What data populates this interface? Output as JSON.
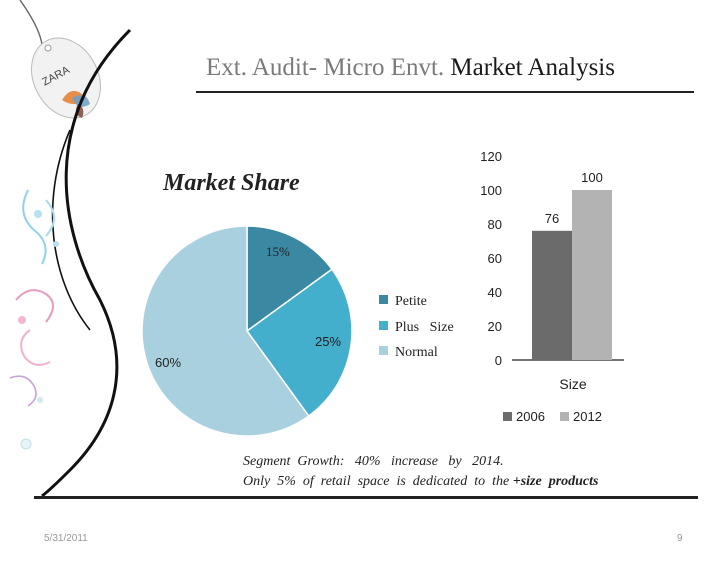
{
  "slide": {
    "title_part1": "Ext. Audit- Micro Envt. ",
    "title_part2": "Market Analysis",
    "logo_text": "ZARA",
    "segment_line1": "Segment  Growth:   40%   increase   by   2014.",
    "segment_line2_pre": "Only  5%  of  retail  space  is  dedicated  to  the ",
    "segment_line2_bold": "+size  products",
    "footer_date": "5/31/2011",
    "page_number": "9"
  },
  "chart_data": [
    {
      "type": "pie",
      "title": "Market    Share",
      "labels": [
        "Petite",
        "Plus   Size",
        "Normal"
      ],
      "values": [
        15,
        25,
        60
      ],
      "value_labels": [
        "15%",
        "25%",
        "60%"
      ],
      "colors": [
        "#3a88a2",
        "#44aecd",
        "#a9d0df"
      ],
      "legend": "right"
    },
    {
      "type": "bar",
      "categories": [
        "Size"
      ],
      "series": [
        {
          "name": "2006",
          "values": [
            76
          ],
          "color": "#6b6b6b"
        },
        {
          "name": "2012",
          "values": [
            100
          ],
          "color": "#b3b3b3"
        }
      ],
      "ylim": [
        0,
        120
      ],
      "yticks": [
        0,
        20,
        40,
        60,
        80,
        100,
        120
      ],
      "grid": false,
      "legend": "bottom"
    }
  ]
}
